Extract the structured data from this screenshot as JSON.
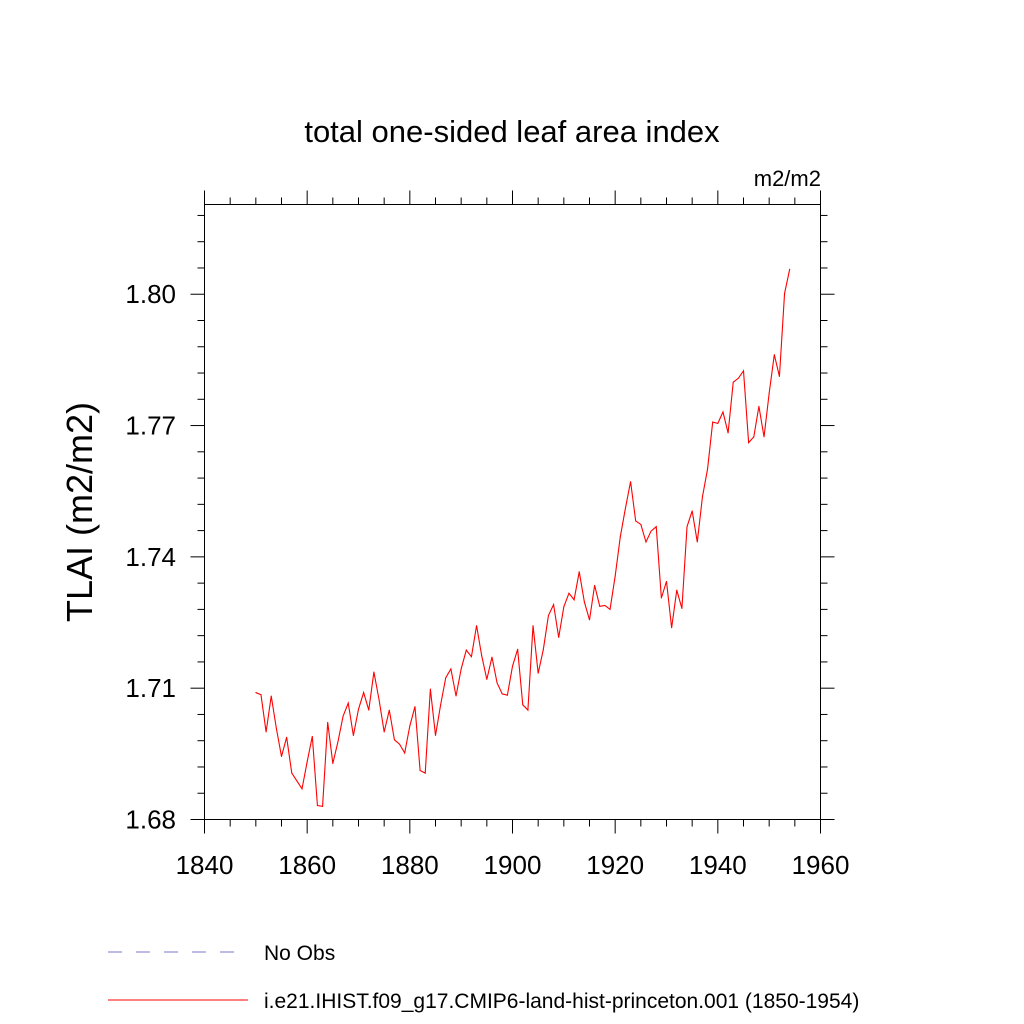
{
  "chart_data": {
    "type": "line",
    "title": "total one-sided leaf area index",
    "units": "m2/m2",
    "ylabel": "TLAI  (m2/m2)",
    "xlabel": "",
    "xlim": [
      1840,
      1960
    ],
    "ylim": [
      1.68,
      1.8205
    ],
    "x_ticks": [
      1840,
      1860,
      1880,
      1900,
      1920,
      1940,
      1960
    ],
    "x_tick_labels": [
      "1840",
      "1860",
      "1880",
      "1900",
      "1920",
      "1940",
      "1960"
    ],
    "x_minor_step": 5,
    "y_ticks": [
      1.68,
      1.71,
      1.74,
      1.77,
      1.8
    ],
    "y_tick_labels": [
      "1.68",
      "1.71",
      "1.74",
      "1.77",
      "1.80"
    ],
    "y_minor_step": 0.006,
    "grid": false,
    "legend_position": "bottom",
    "series": [
      {
        "name": "i.e21.IHIST.f09_g17.CMIP6-land-hist-princeton.001 (1850-1954)",
        "color": "#ff0000",
        "style": "solid",
        "x": [
          1850,
          1851,
          1852,
          1853,
          1854,
          1855,
          1856,
          1857,
          1858,
          1859,
          1860,
          1861,
          1862,
          1863,
          1864,
          1865,
          1866,
          1867,
          1868,
          1869,
          1870,
          1871,
          1872,
          1873,
          1874,
          1875,
          1876,
          1877,
          1878,
          1879,
          1880,
          1881,
          1882,
          1883,
          1884,
          1885,
          1886,
          1887,
          1888,
          1889,
          1890,
          1891,
          1892,
          1893,
          1894,
          1895,
          1896,
          1897,
          1898,
          1899,
          1900,
          1901,
          1902,
          1903,
          1904,
          1905,
          1906,
          1907,
          1908,
          1909,
          1910,
          1911,
          1912,
          1913,
          1914,
          1915,
          1916,
          1917,
          1918,
          1919,
          1920,
          1921,
          1922,
          1923,
          1924,
          1925,
          1926,
          1927,
          1928,
          1929,
          1930,
          1931,
          1932,
          1933,
          1934,
          1935,
          1936,
          1937,
          1938,
          1939,
          1940,
          1941,
          1942,
          1943,
          1944,
          1945,
          1946,
          1947,
          1948,
          1949,
          1950,
          1951,
          1952,
          1953,
          1954
        ],
        "values": [
          1.709,
          1.7085,
          1.7,
          1.7082,
          1.7008,
          1.6944,
          1.6988,
          1.6906,
          1.6888,
          1.687,
          1.6932,
          1.699,
          1.6832,
          1.683,
          1.7022,
          1.6928,
          1.6978,
          1.7036,
          1.7066,
          1.6992,
          1.7052,
          1.709,
          1.705,
          1.7137,
          1.7074,
          1.7,
          1.705,
          1.6982,
          1.6972,
          1.6952,
          1.7014,
          1.7058,
          1.6912,
          1.6906,
          1.7098,
          1.6992,
          1.7062,
          1.7124,
          1.7144,
          1.7082,
          1.7144,
          1.7187,
          1.7172,
          1.7243,
          1.7174,
          1.712,
          1.7171,
          1.7112,
          1.7087,
          1.7084,
          1.715,
          1.7189,
          1.7062,
          1.705,
          1.7243,
          1.7134,
          1.7188,
          1.7266,
          1.7291,
          1.7216,
          1.7286,
          1.7317,
          1.7302,
          1.7366,
          1.7297,
          1.7256,
          1.7335,
          1.7287,
          1.7289,
          1.728,
          1.7356,
          1.7446,
          1.7511,
          1.7572,
          1.7482,
          1.7474,
          1.7434,
          1.7459,
          1.7469,
          1.7306,
          1.7344,
          1.7238,
          1.7324,
          1.7282,
          1.7469,
          1.7505,
          1.7434,
          1.7537,
          1.7601,
          1.7708,
          1.7705,
          1.7731,
          1.7683,
          1.7799,
          1.7808,
          1.7825,
          1.7661,
          1.7674,
          1.7744,
          1.7674,
          1.7774,
          1.7862,
          1.7812,
          1.8002,
          1.8057
        ]
      },
      {
        "name": "No Obs",
        "color": "#7777cc",
        "style": "dashed",
        "x": [],
        "values": []
      }
    ]
  }
}
